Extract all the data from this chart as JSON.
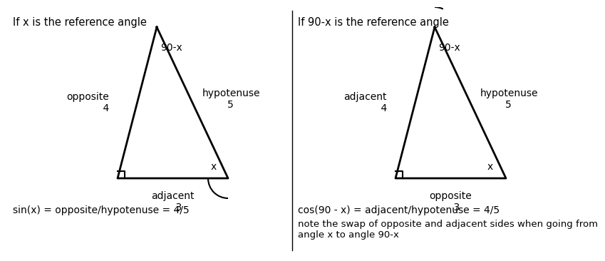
{
  "bg_color": "#ffffff",
  "left_title": "If x is the reference angle",
  "right_title": "If 90-x is the reference angle",
  "left_formula": "sin(x) = opposite/hypotenuse = 4/5",
  "right_formula": "cos(90 - x) = adjacent/hypotenuse = 4/5",
  "right_note": "note the swap of opposite and adjacent sides when going from\nangle x to angle 90-x",
  "font_size": 10,
  "title_font_size": 10.5,
  "label_font_size": 10
}
